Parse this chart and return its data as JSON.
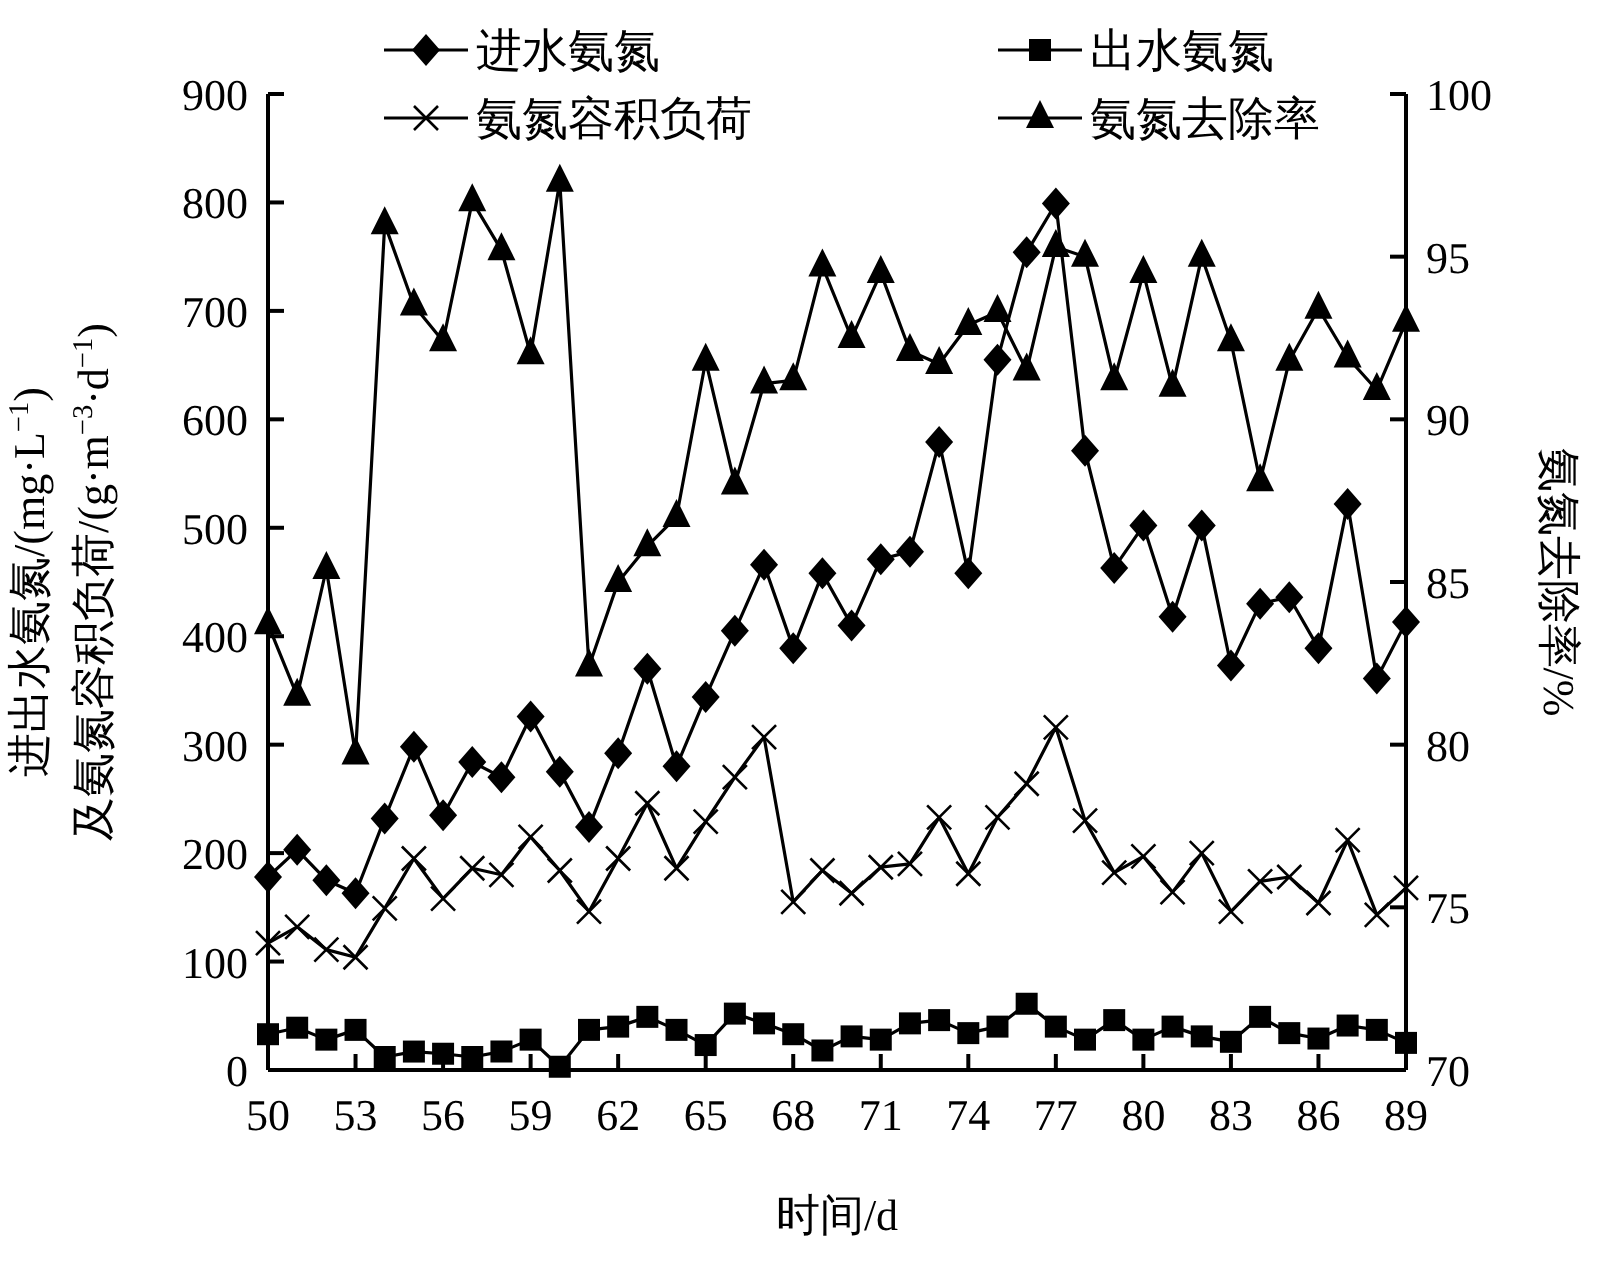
{
  "chart_data": {
    "type": "line",
    "xlabel": "时间/d",
    "ylabel": "进出水氨氮/(mg·L$^{−1}$)\n及氨氮容积负荷/(g·m$^{−3}$·d$^{−1}$)",
    "y2label": "氨氮去除率/%",
    "x": [
      50,
      51,
      52,
      53,
      54,
      55,
      56,
      57,
      58,
      59,
      60,
      61,
      62,
      63,
      64,
      65,
      66,
      67,
      68,
      69,
      70,
      71,
      72,
      73,
      74,
      75,
      76,
      77,
      78,
      79,
      80,
      81,
      82,
      83,
      84,
      85,
      86,
      87,
      88,
      89
    ],
    "xlim": [
      50,
      89
    ],
    "xticks": [
      50,
      53,
      56,
      59,
      62,
      65,
      68,
      71,
      74,
      77,
      80,
      83,
      86,
      89
    ],
    "ylim": [
      0,
      900
    ],
    "yticks": [
      0,
      100,
      200,
      300,
      400,
      500,
      600,
      700,
      800,
      900
    ],
    "y2lim": [
      70,
      100
    ],
    "y2ticks": [
      70,
      75,
      80,
      85,
      90,
      95,
      100
    ],
    "legend": "top",
    "grid": false,
    "line_style": "solid",
    "series": [
      {
        "name": "进水氨氮",
        "color": "#000000",
        "marker": "diamond",
        "values": [
          178,
          203,
          175,
          163,
          232,
          298,
          235,
          284,
          270,
          326,
          275,
          224,
          292,
          370,
          280,
          344,
          405,
          466,
          389,
          458,
          410,
          471,
          478,
          579,
          458,
          655,
          754,
          799,
          571,
          463,
          502,
          418,
          502,
          373,
          430,
          436,
          389,
          522,
          361,
          413
        ]
      },
      {
        "name": "出水氨氮",
        "color": "#000000",
        "marker": "square",
        "values": [
          33,
          39,
          28,
          37,
          12,
          17,
          15,
          12,
          17,
          28,
          3,
          37,
          40,
          49,
          37,
          23,
          52,
          43,
          33,
          18,
          31,
          28,
          43,
          46,
          34,
          40,
          61,
          40,
          28,
          46,
          28,
          40,
          31,
          26,
          49,
          34,
          29,
          41,
          37,
          25
        ]
      },
      {
        "name": "氨氮容积负荷",
        "color": "#000000",
        "marker": "cross",
        "values": [
          117,
          132,
          111,
          104,
          149,
          195,
          158,
          186,
          180,
          215,
          184,
          146,
          195,
          246,
          186,
          229,
          270,
          307,
          155,
          184,
          163,
          187,
          190,
          233,
          181,
          233,
          264,
          316,
          230,
          182,
          197,
          164,
          200,
          146,
          174,
          178,
          154,
          212,
          143,
          168
        ]
      },
      {
        "name": "氨氮去除率",
        "color": "#000000",
        "marker": "triangle",
        "axis": "y2",
        "values": [
          83.7,
          81.5,
          85.4,
          79.7,
          96.0,
          93.5,
          92.4,
          96.7,
          95.2,
          92.0,
          97.3,
          82.4,
          85.0,
          86.1,
          87.0,
          91.8,
          88.0,
          91.1,
          91.2,
          94.7,
          92.5,
          94.5,
          92.1,
          91.7,
          92.9,
          93.3,
          91.5,
          95.3,
          95.0,
          91.2,
          94.5,
          91.0,
          95.0,
          92.4,
          88.1,
          91.8,
          93.4,
          91.9,
          90.9,
          93.0
        ]
      }
    ]
  }
}
